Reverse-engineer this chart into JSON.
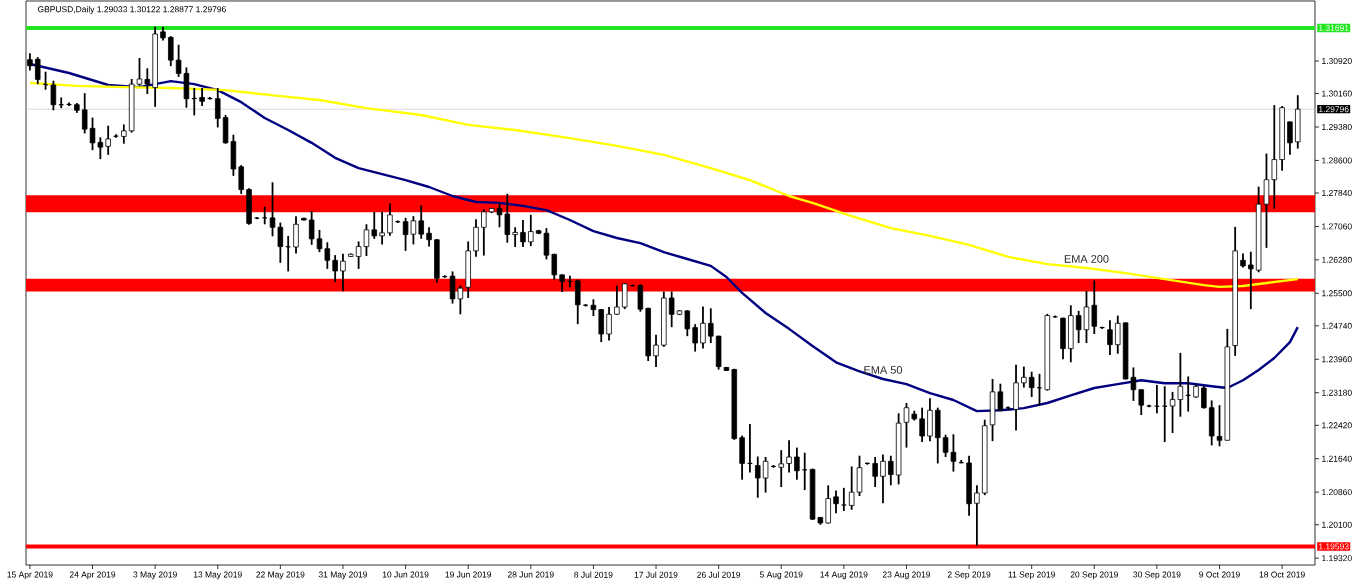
{
  "chart_data": {
    "type": "candlestick",
    "title": "GBPUSD,Daily 1.29033 1.30122 1.28877 1.29796",
    "categories": [
      "15 Apr 2019",
      null,
      null,
      null,
      null,
      null,
      null,
      null,
      "24 Apr 2019",
      null,
      null,
      null,
      null,
      null,
      null,
      null,
      "3 May 2019",
      null,
      null,
      null,
      null,
      null,
      null,
      null,
      "13 May 2019",
      null,
      null,
      null,
      null,
      null,
      null,
      null,
      "22 May 2019",
      null,
      null,
      null,
      null,
      null,
      null,
      null,
      "31 May 2019",
      null,
      null,
      null,
      null,
      null,
      null,
      null,
      "10 Jun 2019",
      null,
      null,
      null,
      null,
      null,
      null,
      null,
      "19 Jun 2019",
      null,
      null,
      null,
      null,
      null,
      null,
      null,
      "28 Jun 2019",
      null,
      null,
      null,
      null,
      null,
      null,
      null,
      "8 Jul 2019",
      null,
      null,
      null,
      null,
      null,
      null,
      null,
      "17 Jul 2019",
      null,
      null,
      null,
      null,
      null,
      null,
      null,
      "26 Jul 2019",
      null,
      null,
      null,
      null,
      null,
      null,
      null,
      "5 Aug 2019",
      null,
      null,
      null,
      null,
      null,
      null,
      null,
      "14 Aug 2019",
      null,
      null,
      null,
      null,
      null,
      null,
      null,
      "23 Aug 2019",
      null,
      null,
      null,
      null,
      null,
      null,
      null,
      "2 Sep 2019",
      null,
      null,
      null,
      null,
      null,
      null,
      null,
      "11 Sep 2019",
      null,
      null,
      null,
      null,
      null,
      null,
      null,
      "20 Sep 2019",
      null,
      null,
      null,
      null,
      null,
      null,
      null,
      "30 Sep 2019",
      null,
      null,
      null,
      null,
      null,
      null,
      null,
      "9 Oct 2019",
      null,
      null,
      null,
      null,
      null,
      null,
      null,
      "18 Oct 2019",
      null,
      null
    ],
    "ohlc": [
      [
        1.3095,
        1.311,
        1.307,
        1.3081
      ],
      [
        1.3096,
        1.3101,
        1.3038,
        1.3049
      ],
      [
        1.3038,
        1.3067,
        1.3025,
        1.3036
      ],
      [
        1.3036,
        1.3046,
        1.2977,
        1.299
      ],
      [
        1.299,
        1.3007,
        1.2982,
        1.299
      ],
      [
        1.2991,
        1.2995,
        1.2987,
        1.299
      ],
      [
        1.299,
        1.2994,
        1.2971,
        1.2977
      ],
      [
        1.2978,
        1.3017,
        1.2923,
        1.2933
      ],
      [
        1.2935,
        1.296,
        1.2884,
        1.2901
      ],
      [
        1.2902,
        1.2914,
        1.2863,
        1.2891
      ],
      [
        1.2893,
        1.2941,
        1.2873,
        1.291
      ],
      [
        1.2916,
        1.2921,
        1.2913,
        1.2917
      ],
      [
        1.2916,
        1.2944,
        1.2899,
        1.2929
      ],
      [
        1.2929,
        1.305,
        1.2925,
        1.3038
      ],
      [
        1.3038,
        1.3099,
        1.3034,
        1.305
      ],
      [
        1.3049,
        1.3075,
        1.3015,
        1.3038
      ],
      [
        1.303,
        1.3172,
        1.2985,
        1.3155
      ],
      [
        1.316,
        1.3172,
        1.314,
        1.3146
      ],
      [
        1.3147,
        1.315,
        1.308,
        1.3094
      ],
      [
        1.3094,
        1.313,
        1.3055,
        1.3063
      ],
      [
        1.3063,
        1.3077,
        1.2983,
        1.3004
      ],
      [
        1.3004,
        1.3029,
        1.2965,
        1.3005
      ],
      [
        1.3007,
        1.3029,
        1.2987,
        1.2998
      ],
      [
        1.3005,
        1.3008,
        1.3002,
        1.3004
      ],
      [
        1.3004,
        1.3029,
        1.2937,
        1.2958
      ],
      [
        1.296,
        1.2966,
        1.2899,
        1.2901
      ],
      [
        1.2904,
        1.292,
        1.2824,
        1.284
      ],
      [
        1.2845,
        1.2849,
        1.2782,
        1.2792
      ],
      [
        1.2792,
        1.2795,
        1.271,
        1.2713
      ],
      [
        1.2726,
        1.2728,
        1.2723,
        1.2725
      ],
      [
        1.2726,
        1.2752,
        1.2711,
        1.2726
      ],
      [
        1.2726,
        1.2809,
        1.2683,
        1.2704
      ],
      [
        1.2704,
        1.2715,
        1.2621,
        1.2659
      ],
      [
        1.2659,
        1.2684,
        1.2601,
        1.2658
      ],
      [
        1.2658,
        1.273,
        1.2643,
        1.2711
      ],
      [
        1.2725,
        1.2726,
        1.272,
        1.2721
      ],
      [
        1.2721,
        1.2742,
        1.2663,
        1.2677
      ],
      [
        1.2677,
        1.2698,
        1.2646,
        1.2654
      ],
      [
        1.2654,
        1.2669,
        1.2607,
        1.2627
      ],
      [
        1.2627,
        1.2639,
        1.2576,
        1.2602
      ],
      [
        1.2602,
        1.2642,
        1.2555,
        1.2625
      ],
      [
        1.2636,
        1.2643,
        1.2635,
        1.2641
      ],
      [
        1.2636,
        1.2671,
        1.2607,
        1.2659
      ],
      [
        1.2659,
        1.2711,
        1.2637,
        1.2698
      ],
      [
        1.2698,
        1.274,
        1.2677,
        1.2684
      ],
      [
        1.2684,
        1.274,
        1.2664,
        1.2691
      ],
      [
        1.2691,
        1.276,
        1.2684,
        1.2733
      ],
      [
        1.2717,
        1.272,
        1.2714,
        1.2717
      ],
      [
        1.2717,
        1.2726,
        1.2649,
        1.2687
      ],
      [
        1.2688,
        1.273,
        1.2664,
        1.2719
      ],
      [
        1.2719,
        1.2755,
        1.2677,
        1.2688
      ],
      [
        1.269,
        1.2704,
        1.2659,
        1.2675
      ],
      [
        1.2675,
        1.2676,
        1.2575,
        1.2585
      ],
      [
        1.2589,
        1.2592,
        1.2586,
        1.2589
      ],
      [
        1.259,
        1.2601,
        1.2526,
        1.2537
      ],
      [
        1.2537,
        1.2568,
        1.2501,
        1.2562
      ],
      [
        1.2564,
        1.2671,
        1.2539,
        1.2649
      ],
      [
        1.2649,
        1.2723,
        1.2635,
        1.2704
      ],
      [
        1.2704,
        1.2746,
        1.2638,
        1.274
      ],
      [
        1.274,
        1.2749,
        1.2737,
        1.2748
      ],
      [
        1.2748,
        1.2761,
        1.2704,
        1.2733
      ],
      [
        1.2735,
        1.2782,
        1.2668,
        1.2687
      ],
      [
        1.2687,
        1.2704,
        1.2658,
        1.2692
      ],
      [
        1.2692,
        1.2721,
        1.2658,
        1.267
      ],
      [
        1.267,
        1.2733,
        1.266,
        1.2694
      ],
      [
        1.2696,
        1.2698,
        1.2688,
        1.269
      ],
      [
        1.269,
        1.2702,
        1.2629,
        1.2639
      ],
      [
        1.2641,
        1.2642,
        1.2582,
        1.2593
      ],
      [
        1.2593,
        1.2594,
        1.2553,
        1.2578
      ],
      [
        1.2578,
        1.2591,
        1.2564,
        1.2578
      ],
      [
        1.2579,
        1.2582,
        1.2478,
        1.2523
      ],
      [
        1.2522,
        1.2525,
        1.2519,
        1.2522
      ],
      [
        1.2522,
        1.2536,
        1.2497,
        1.2512
      ],
      [
        1.2512,
        1.2513,
        1.2436,
        1.2455
      ],
      [
        1.2455,
        1.2518,
        1.244,
        1.2501
      ],
      [
        1.2501,
        1.2568,
        1.25,
        1.2518
      ],
      [
        1.2518,
        1.2574,
        1.2513,
        1.2572
      ],
      [
        1.2568,
        1.257,
        1.2566,
        1.2568
      ],
      [
        1.2568,
        1.2571,
        1.2507,
        1.2513
      ],
      [
        1.2515,
        1.2516,
        1.2392,
        1.2404
      ],
      [
        1.2404,
        1.2453,
        1.2378,
        1.2429
      ],
      [
        1.2429,
        1.2554,
        1.2425,
        1.2539
      ],
      [
        1.2539,
        1.2554,
        1.2471,
        1.2501
      ],
      [
        1.2501,
        1.2511,
        1.2499,
        1.2509
      ],
      [
        1.2509,
        1.251,
        1.245,
        1.2467
      ],
      [
        1.247,
        1.2478,
        1.2414,
        1.2434
      ],
      [
        1.2434,
        1.2519,
        1.2421,
        1.248
      ],
      [
        1.248,
        1.2515,
        1.2434,
        1.245
      ],
      [
        1.245,
        1.2451,
        1.2372,
        1.2379
      ],
      [
        1.2377,
        1.2378,
        1.2369,
        1.237
      ],
      [
        1.2372,
        1.2374,
        1.2208,
        1.2211
      ],
      [
        1.2213,
        1.2218,
        1.2115,
        1.2153
      ],
      [
        1.2153,
        1.2245,
        1.2132,
        1.2153
      ],
      [
        1.2148,
        1.2169,
        1.2073,
        1.2119
      ],
      [
        1.2119,
        1.2168,
        1.2085,
        1.2158
      ],
      [
        1.2146,
        1.2149,
        1.2143,
        1.2146
      ],
      [
        1.2144,
        1.2184,
        1.2098,
        1.2152
      ],
      [
        1.2153,
        1.2207,
        1.2132,
        1.2168
      ],
      [
        1.2168,
        1.219,
        1.2115,
        1.2136
      ],
      [
        1.2138,
        1.2178,
        1.2091,
        1.2138
      ],
      [
        1.2139,
        1.2141,
        1.2021,
        1.2023
      ],
      [
        1.2027,
        1.2028,
        1.201,
        1.2014
      ],
      [
        1.2014,
        1.2102,
        1.2013,
        1.2071
      ],
      [
        1.2075,
        1.209,
        1.2037,
        1.2059
      ],
      [
        1.2056,
        1.2096,
        1.2042,
        1.2056
      ],
      [
        1.2055,
        1.2146,
        1.2045,
        1.2086
      ],
      [
        1.2086,
        1.2171,
        1.2077,
        1.2143
      ],
      [
        1.2153,
        1.2155,
        1.215,
        1.2153
      ],
      [
        1.2153,
        1.2168,
        1.2098,
        1.2123
      ],
      [
        1.2123,
        1.2174,
        1.206,
        1.2158
      ],
      [
        1.2158,
        1.2171,
        1.2102,
        1.2127
      ],
      [
        1.2126,
        1.227,
        1.2104,
        1.2247
      ],
      [
        1.2249,
        1.2294,
        1.219,
        1.2283
      ],
      [
        1.2268,
        1.2276,
        1.2253,
        1.2257
      ],
      [
        1.2257,
        1.2283,
        1.2203,
        1.2217
      ],
      [
        1.2217,
        1.2305,
        1.2205,
        1.2277
      ],
      [
        1.2277,
        1.2283,
        1.2153,
        1.2213
      ],
      [
        1.2213,
        1.222,
        1.2168,
        1.2179
      ],
      [
        1.2179,
        1.2221,
        1.2134,
        1.2158
      ],
      [
        1.2155,
        1.2161,
        1.2153,
        1.2155
      ],
      [
        1.2154,
        1.2171,
        1.2031,
        1.2059
      ],
      [
        1.206,
        1.2102,
        1.1961,
        1.2084
      ],
      [
        1.2084,
        1.2255,
        1.2079,
        1.2241
      ],
      [
        1.2243,
        1.235,
        1.2205,
        1.232
      ],
      [
        1.232,
        1.2339,
        1.2277,
        1.2277
      ],
      [
        1.2283,
        1.2286,
        1.2278,
        1.2282
      ],
      [
        1.2279,
        1.2383,
        1.223,
        1.2341
      ],
      [
        1.2341,
        1.2379,
        1.233,
        1.2354
      ],
      [
        1.2354,
        1.2367,
        1.2308,
        1.233
      ],
      [
        1.233,
        1.2362,
        1.2289,
        1.2329
      ],
      [
        1.2325,
        1.2502,
        1.2323,
        1.2498
      ],
      [
        1.2495,
        1.2498,
        1.2493,
        1.2495
      ],
      [
        1.2492,
        1.2493,
        1.2396,
        1.2421
      ],
      [
        1.2421,
        1.2522,
        1.2389,
        1.2498
      ],
      [
        1.2498,
        1.2509,
        1.2434,
        1.2465
      ],
      [
        1.2465,
        1.2555,
        1.2434,
        1.2518
      ],
      [
        1.2522,
        1.258,
        1.2455,
        1.2473
      ],
      [
        1.247,
        1.2472,
        1.2467,
        1.247
      ],
      [
        1.2465,
        1.2487,
        1.2406,
        1.243
      ],
      [
        1.243,
        1.2498,
        1.2409,
        1.248
      ],
      [
        1.2481,
        1.2482,
        1.2349,
        1.235
      ],
      [
        1.2354,
        1.2377,
        1.2299,
        1.2325
      ],
      [
        1.2325,
        1.2326,
        1.2266,
        1.2289
      ],
      [
        1.2287,
        1.229,
        1.2284,
        1.2287
      ],
      [
        1.2287,
        1.2336,
        1.227,
        1.2286
      ],
      [
        1.2287,
        1.2333,
        1.2203,
        1.2286
      ],
      [
        1.2287,
        1.232,
        1.2224,
        1.2302
      ],
      [
        1.2302,
        1.2411,
        1.2262,
        1.2333
      ],
      [
        1.2312,
        1.2356,
        1.2274,
        1.2312
      ],
      [
        1.2308,
        1.2337,
        1.2306,
        1.2333
      ],
      [
        1.2329,
        1.2334,
        1.2281,
        1.2283
      ],
      [
        1.2283,
        1.23,
        1.2195,
        1.2217
      ],
      [
        1.2216,
        1.2289,
        1.2193,
        1.2207
      ],
      [
        1.2207,
        1.2467,
        1.2207,
        1.2425
      ],
      [
        1.2428,
        1.2705,
        1.2404,
        1.2649
      ],
      [
        1.2627,
        1.2643,
        1.261,
        1.2614
      ],
      [
        1.2616,
        1.2647,
        1.2513,
        1.2607
      ],
      [
        1.2604,
        1.2799,
        1.2599,
        1.2758
      ],
      [
        1.2758,
        1.2876,
        1.2656,
        1.2815
      ],
      [
        1.2815,
        1.2989,
        1.2747,
        1.2862
      ],
      [
        1.2862,
        1.2987,
        1.2836,
        1.2983
      ],
      [
        1.295,
        1.295,
        1.2873,
        1.2901
      ],
      [
        1.29033,
        1.30122,
        1.28877,
        1.29796
      ]
    ],
    "series": [
      {
        "type": "line",
        "name": "EMA 50",
        "color": "#000080",
        "values": [
          1.3085,
          null,
          null,
          null,
          null,
          1.3064,
          null,
          null,
          null,
          null,
          1.3036,
          null,
          null,
          null,
          1.3031,
          null,
          null,
          null,
          1.3045,
          null,
          null,
          1.3038,
          null,
          null,
          1.3024,
          null,
          null,
          1.2996,
          null,
          null,
          1.2959,
          null,
          null,
          1.2931,
          null,
          null,
          1.2901,
          null,
          null,
          1.2866,
          null,
          null,
          1.2842,
          null,
          null,
          1.2828,
          null,
          null,
          1.2814,
          null,
          null,
          1.2798,
          null,
          null,
          1.2777,
          null,
          null,
          1.2763,
          null,
          null,
          1.2761,
          null,
          null,
          1.2754,
          null,
          null,
          1.2744,
          null,
          null,
          1.2721,
          null,
          null,
          1.2695,
          null,
          null,
          1.2679,
          null,
          null,
          1.2667,
          null,
          null,
          1.2646,
          null,
          null,
          1.263,
          null,
          null,
          1.2614,
          null,
          1.2588,
          null,
          1.2551,
          null,
          null,
          1.2504,
          null,
          null,
          1.2467,
          null,
          null,
          1.2427,
          null,
          null,
          1.2389,
          null,
          null,
          1.2368,
          null,
          null,
          1.235,
          null,
          null,
          1.2338,
          null,
          null,
          1.2317,
          null,
          null,
          1.2301,
          null,
          null,
          1.2275,
          null,
          null,
          1.2277,
          null,
          null,
          1.2282,
          null,
          null,
          1.2294,
          null,
          null,
          1.2312,
          null,
          null,
          1.2329,
          null,
          null,
          1.2338,
          null,
          null,
          1.2347,
          null,
          null,
          1.234,
          null,
          null,
          1.234,
          null,
          null,
          1.2333,
          null,
          1.2329,
          null,
          1.2347,
          null,
          1.2371,
          null,
          1.2399,
          null,
          1.2436,
          1.2471
        ]
      },
      {
        "type": "line",
        "name": "EMA 200",
        "color": "#ffff00",
        "values": [
          1.3041,
          null,
          null,
          null,
          null,
          null,
          1.3034,
          null,
          null,
          null,
          null,
          null,
          1.3031,
          null,
          null,
          null,
          null,
          null,
          1.3029,
          null,
          null,
          null,
          null,
          null,
          null,
          1.3024,
          null,
          null,
          null,
          null,
          null,
          null,
          1.301,
          null,
          null,
          null,
          null,
          1.3001,
          null,
          null,
          null,
          null,
          null,
          1.2982,
          null,
          null,
          null,
          null,
          null,
          null,
          1.2966,
          null,
          null,
          null,
          null,
          null,
          1.2943,
          null,
          null,
          null,
          null,
          null,
          1.2931,
          null,
          null,
          null,
          null,
          null,
          null,
          1.2912,
          null,
          null,
          null,
          null,
          null,
          1.2894,
          null,
          null,
          null,
          null,
          null,
          1.2873,
          null,
          null,
          null,
          null,
          null,
          1.2842,
          null,
          null,
          null,
          null,
          1.2814,
          null,
          null,
          null,
          null,
          1.2777,
          null,
          null,
          1.2761,
          null,
          null,
          null,
          null,
          1.273,
          null,
          null,
          null,
          null,
          1.2702,
          null,
          null,
          null,
          null,
          1.2684,
          null,
          null,
          null,
          null,
          1.2663,
          null,
          null,
          null,
          null,
          1.2635,
          null,
          null,
          null,
          null,
          1.2618,
          null,
          null,
          null,
          null,
          1.2609,
          null,
          null,
          null,
          null,
          1.2597,
          null,
          null,
          null,
          null,
          1.2583,
          null,
          null,
          null,
          null,
          1.2569,
          null,
          1.2565,
          null,
          null,
          1.2567,
          null,
          null,
          1.2574,
          null,
          null,
          null,
          1.2583
        ]
      }
    ],
    "ylim": [
      1.1916,
      1.3232
    ],
    "yticks": [
      {
        "value": 1.1932,
        "label": "1.19320"
      },
      {
        "value": 1.201,
        "label": "1.20100"
      },
      {
        "value": 1.2086,
        "label": "1.20860"
      },
      {
        "value": 1.2164,
        "label": "1.21640"
      },
      {
        "value": 1.2242,
        "label": "1.22420"
      },
      {
        "value": 1.2318,
        "label": "1.23180"
      },
      {
        "value": 1.2396,
        "label": "1.23960"
      },
      {
        "value": 1.2474,
        "label": "1.24740"
      },
      {
        "value": 1.255,
        "label": "1.25500"
      },
      {
        "value": 1.2628,
        "label": "1.26280"
      },
      {
        "value": 1.2706,
        "label": "1.27060"
      },
      {
        "value": 1.2784,
        "label": "1.27840"
      },
      {
        "value": 1.286,
        "label": "1.28600"
      },
      {
        "value": 1.2938,
        "label": "1.29380"
      },
      {
        "value": 1.3016,
        "label": "1.30160"
      },
      {
        "value": 1.3092,
        "label": "1.30920"
      }
    ],
    "ref_lines": [
      {
        "axis": "y",
        "value": 1.31691,
        "label": "1.31691",
        "color": "#22e622"
      },
      {
        "axis": "y",
        "value": 1.19593,
        "label": "1.19593",
        "color": "#ff0000"
      },
      {
        "axis": "y",
        "value": 1.29796,
        "label": "1.29796",
        "color": "#c0c0c0"
      }
    ],
    "bands": [
      {
        "axis": "y",
        "from": 1.2739,
        "to": 1.2779,
        "color": "#ff0000"
      },
      {
        "axis": "y",
        "from": 1.2554,
        "to": 1.2584,
        "color": "#ff0000"
      }
    ]
  }
}
